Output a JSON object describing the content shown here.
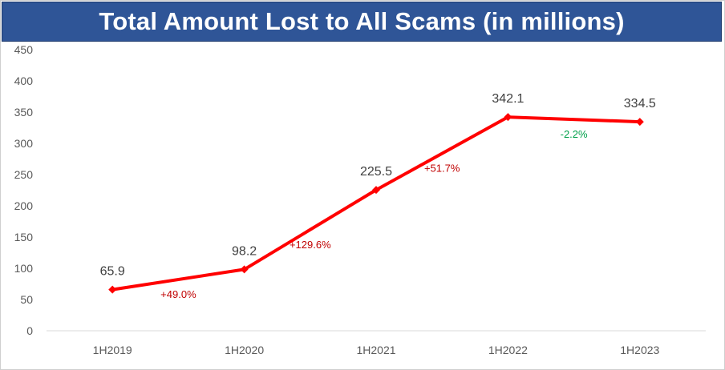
{
  "chart_data": {
    "type": "line",
    "title": "Total Amount Lost to All Scams (in millions)",
    "categories": [
      "1H2019",
      "1H2020",
      "1H2021",
      "1H2022",
      "1H2023"
    ],
    "series": [
      {
        "values": [
          65.9,
          98.2,
          225.5,
          342.1,
          334.5
        ]
      }
    ],
    "data_labels": [
      "65.9",
      "98.2",
      "225.5",
      "342.1",
      "334.5"
    ],
    "percent_changes": [
      {
        "text": "+49.0%",
        "color": "#c00000"
      },
      {
        "text": "+129.6%",
        "color": "#c00000"
      },
      {
        "text": "+51.7%",
        "color": "#c00000"
      },
      {
        "text": "-2.2%",
        "color": "#00a04a"
      }
    ],
    "yticks": [
      "0",
      "50",
      "100",
      "150",
      "200",
      "250",
      "300",
      "350",
      "400",
      "450"
    ],
    "ylim": [
      0,
      450
    ],
    "grid": false,
    "line_color": "#ff0000",
    "title_bg": "#2f5597"
  }
}
